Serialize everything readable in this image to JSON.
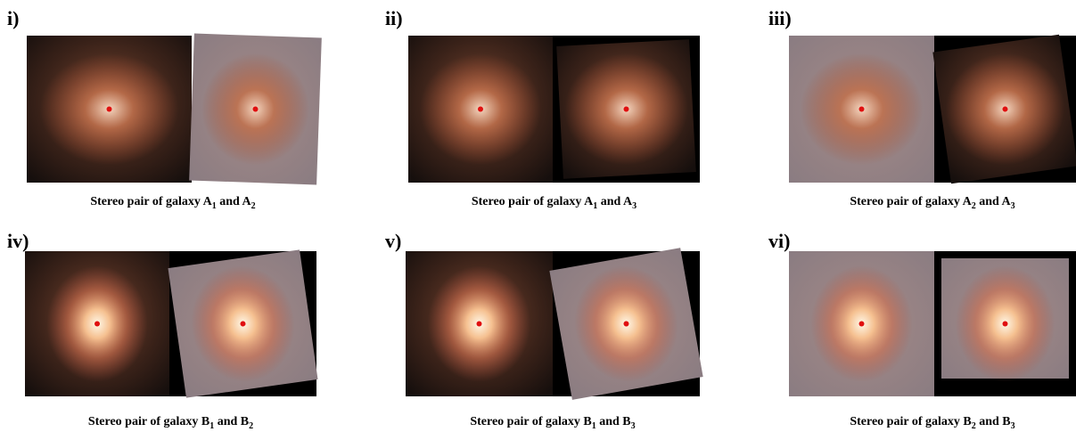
{
  "panels": [
    {
      "label": "i)",
      "caption": [
        {
          "text": "Stereo pair of galaxy A"
        },
        {
          "sub": "1"
        },
        {
          "text": " and A"
        },
        {
          "sub": "2"
        }
      ]
    },
    {
      "label": "ii)",
      "caption": [
        {
          "text": "Stereo pair of galaxy A"
        },
        {
          "sub": "1"
        },
        {
          "text": " and A"
        },
        {
          "sub": "3"
        }
      ]
    },
    {
      "label": "iii)",
      "caption": [
        {
          "text": "Stereo pair of galaxy A"
        },
        {
          "sub": "2"
        },
        {
          "text": " and A"
        },
        {
          "sub": "3"
        }
      ]
    },
    {
      "label": "iv)",
      "caption": [
        {
          "text": "Stereo pair of galaxy B"
        },
        {
          "sub": "1"
        },
        {
          "text": " and B"
        },
        {
          "sub": "2"
        }
      ]
    },
    {
      "label": "v)",
      "caption": [
        {
          "text": "Stereo pair of galaxy B"
        },
        {
          "sub": "1"
        },
        {
          "text": " and B"
        },
        {
          "sub": "3"
        }
      ]
    },
    {
      "label": "vi)",
      "caption": [
        {
          "text": "Stereo pair of galaxy B"
        },
        {
          "sub": "2"
        },
        {
          "text": " and B"
        },
        {
          "sub": "3"
        }
      ]
    }
  ]
}
